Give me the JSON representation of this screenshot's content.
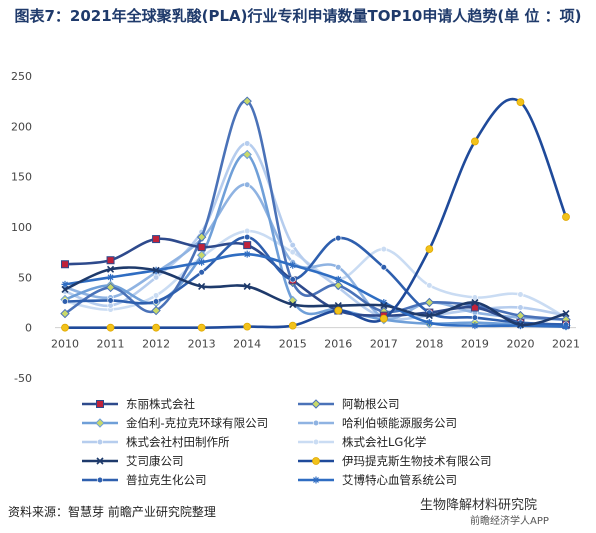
{
  "title": "图表7：2021年全球聚乳酸(PLA)行业专利申请数量TOP10申请人趋势(单 位 ：项)",
  "footer": {
    "source": "资料来源：智慧芽 前瞻产业研究院整理",
    "wechat": "生物降解材料研究院",
    "wechat_sub": "前瞻经济学人APP"
  },
  "chart_data": {
    "type": "line",
    "xlabel": "",
    "ylabel": "",
    "ylim": [
      -50,
      250
    ],
    "yticks": [
      -50,
      0,
      50,
      100,
      150,
      200,
      250
    ],
    "x": [
      "2010",
      "2011",
      "2012",
      "2013",
      "2014",
      "2015",
      "2016",
      "2017",
      "2018",
      "2019",
      "2020",
      "2021"
    ],
    "grid": false,
    "legend_position": "bottom",
    "series": [
      {
        "name": "东丽株式会社",
        "color": "#2e4a8c",
        "marker": "square-red",
        "values": [
          63,
          67,
          88,
          80,
          82,
          47,
          17,
          12,
          15,
          20,
          5,
          3
        ]
      },
      {
        "name": "阿勒根公司",
        "color": "#4a72b8",
        "marker": "diamond",
        "values": [
          14,
          40,
          17,
          90,
          225,
          45,
          42,
          16,
          25,
          22,
          12,
          8
        ]
      },
      {
        "name": "金伯利-克拉克环球有限公司",
        "color": "#6f9fd8",
        "marker": "diamond",
        "values": [
          28,
          42,
          25,
          72,
          172,
          27,
          18,
          8,
          4,
          5,
          3,
          2
        ]
      },
      {
        "name": "哈利伯顿能源服务公司",
        "color": "#8fb3e2",
        "marker": "circle",
        "values": [
          40,
          30,
          55,
          88,
          142,
          65,
          60,
          10,
          25,
          15,
          10,
          8
        ]
      },
      {
        "name": "株式会社村田制作所",
        "color": "#b6cdee",
        "marker": "circle",
        "values": [
          36,
          22,
          50,
          95,
          183,
          82,
          40,
          10,
          12,
          18,
          20,
          12
        ]
      },
      {
        "name": "株式会社LG化学",
        "color": "#cadcf3",
        "marker": "circle",
        "values": [
          26,
          18,
          32,
          70,
          96,
          75,
          48,
          78,
          42,
          30,
          33,
          10
        ]
      },
      {
        "name": "艾司康公司",
        "color": "#1e3a6b",
        "marker": "x",
        "values": [
          38,
          58,
          57,
          41,
          41,
          23,
          22,
          22,
          12,
          25,
          3,
          14
        ]
      },
      {
        "name": "伊玛提克斯生物技术有限公司",
        "color": "#1f4a9a",
        "marker": "circle-gold",
        "values": [
          0,
          0,
          0,
          0,
          1,
          2,
          17,
          9,
          78,
          185,
          224,
          110
        ]
      },
      {
        "name": "普拉克生化公司",
        "color": "#2e5fae",
        "marker": "circle",
        "values": [
          26,
          27,
          26,
          55,
          90,
          48,
          89,
          60,
          15,
          10,
          5,
          3
        ]
      },
      {
        "name": "艾博特心血管系统公司",
        "color": "#2f6dc2",
        "marker": "star",
        "values": [
          43,
          50,
          57,
          65,
          73,
          62,
          48,
          25,
          5,
          2,
          2,
          1
        ]
      }
    ]
  }
}
